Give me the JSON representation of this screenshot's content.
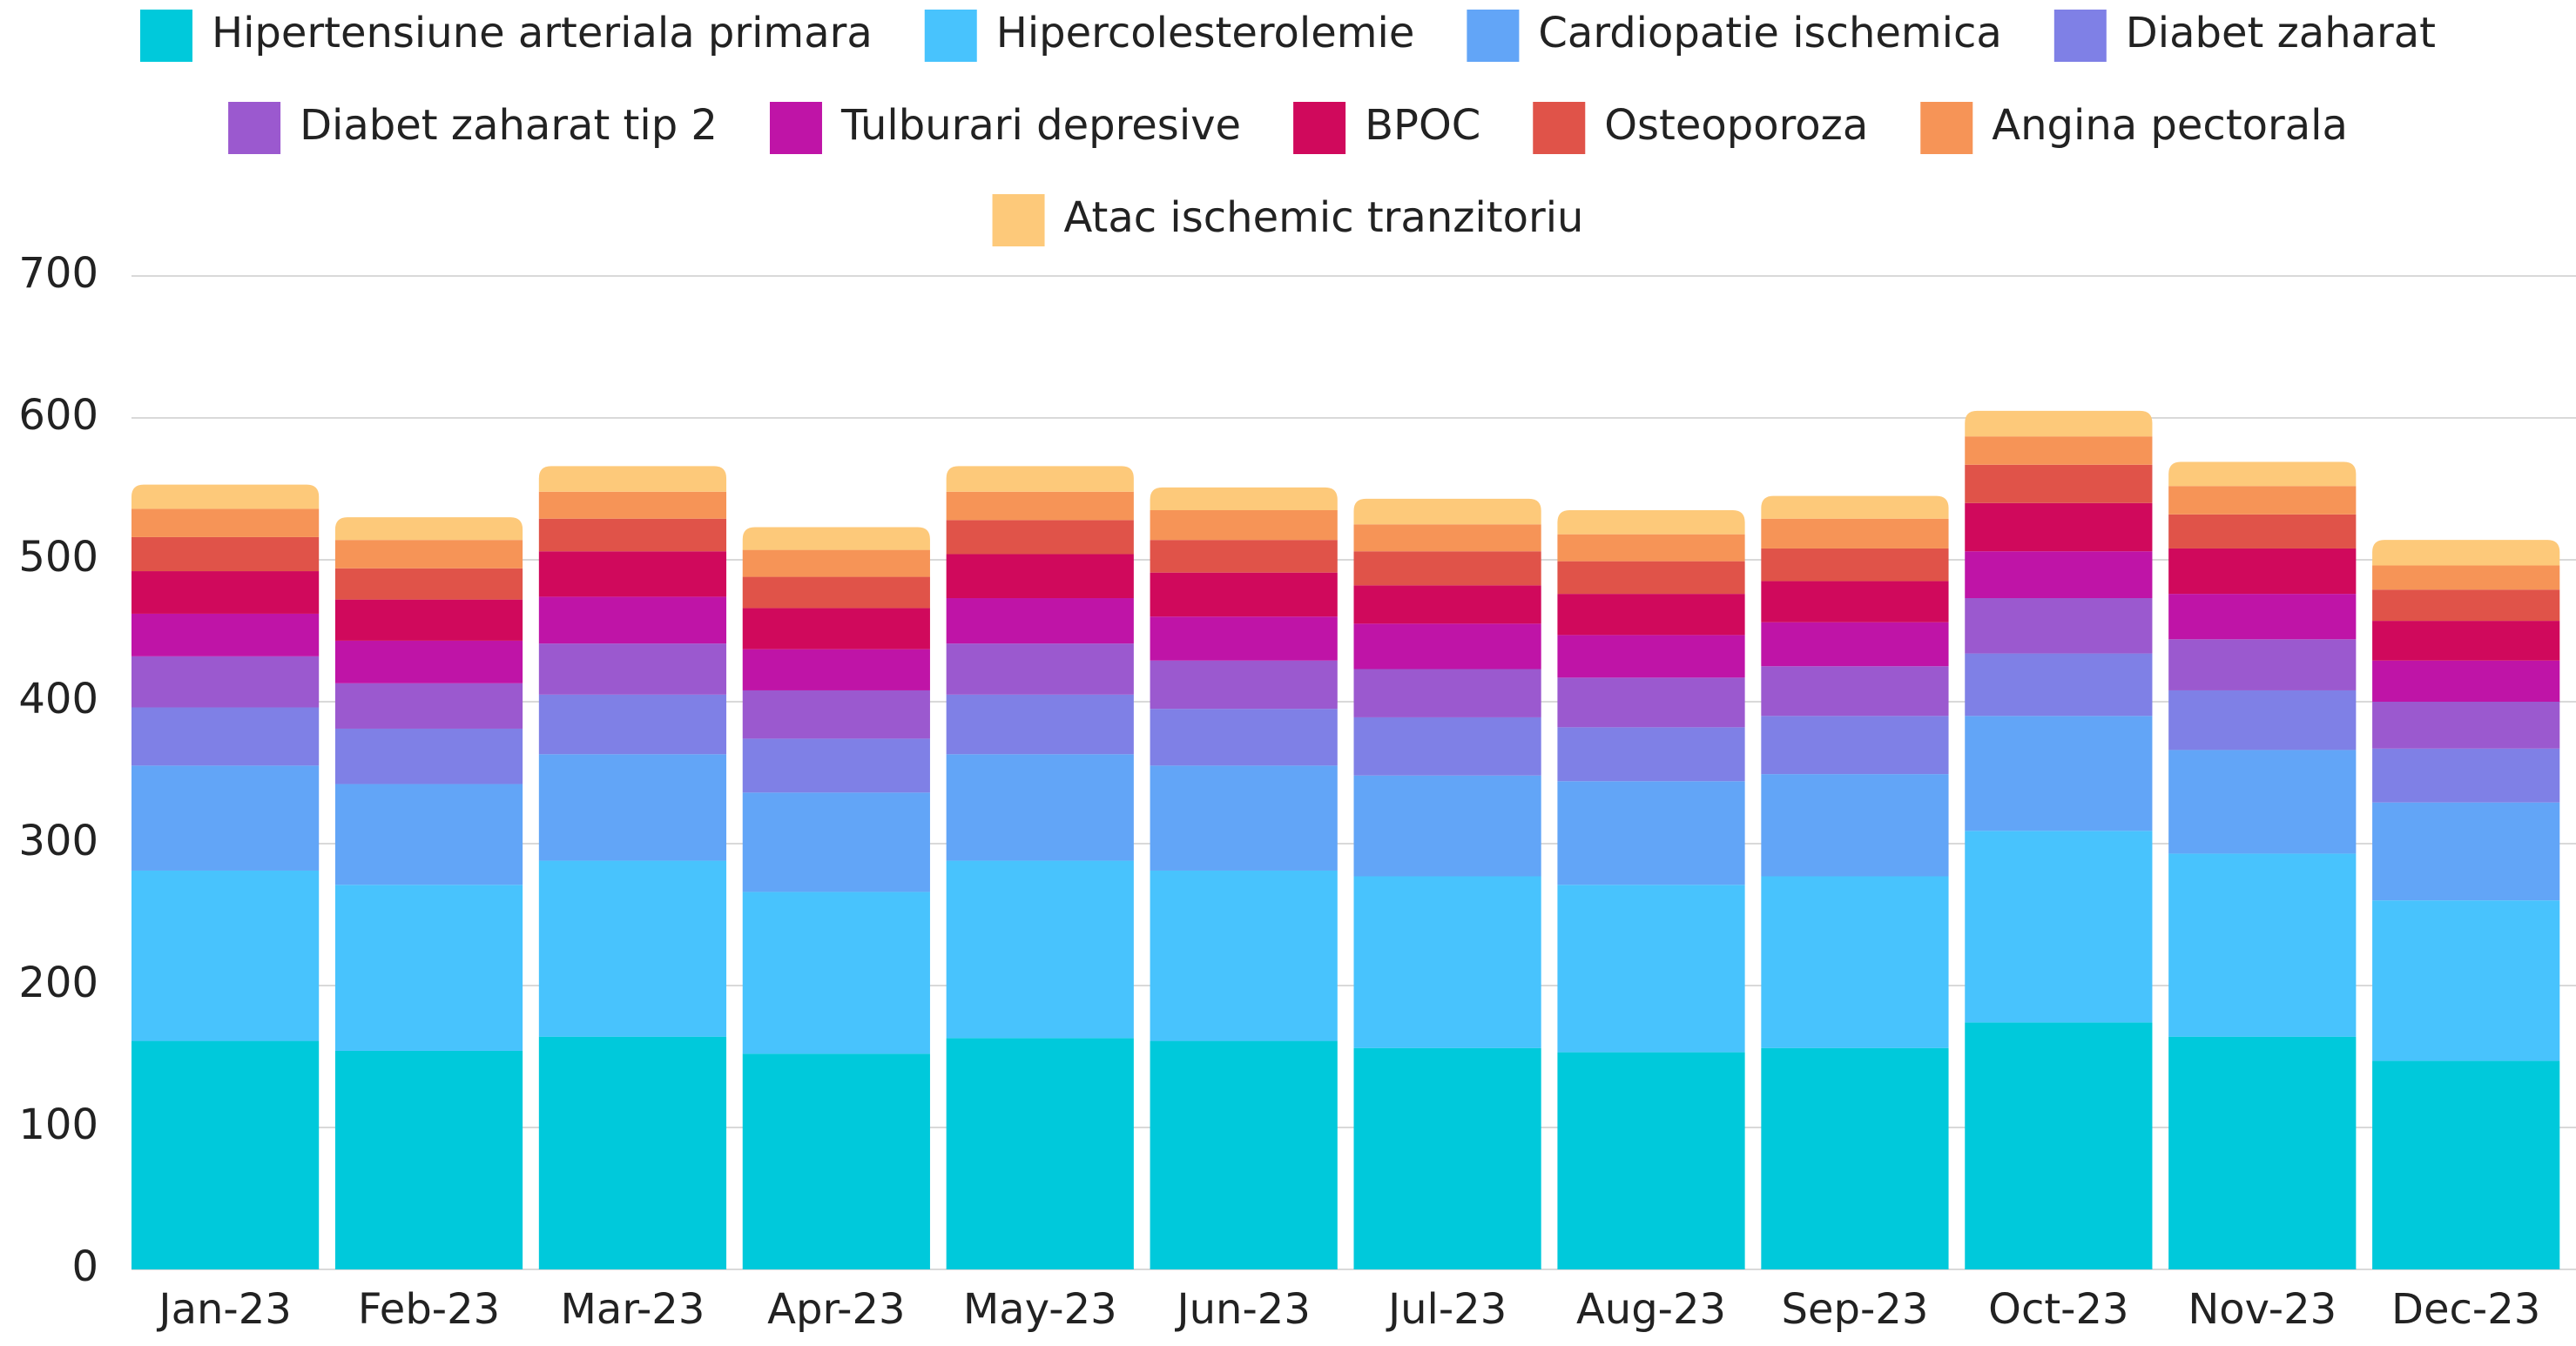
{
  "chart_data": {
    "type": "stacked_bar",
    "categories": [
      "Jan-23",
      "Feb-23",
      "Mar-23",
      "Apr-23",
      "May-23",
      "Jun-23",
      "Jul-23",
      "Aug-23",
      "Sep-23",
      "Oct-23",
      "Nov-23",
      "Dec-23"
    ],
    "series": [
      {
        "name": "Hipertensiune arteriala primara",
        "color": "#00c9db",
        "values": [
          161,
          154,
          164,
          152,
          163,
          161,
          156,
          153,
          156,
          174,
          164,
          147
        ]
      },
      {
        "name": "Hipercolesterolemie",
        "color": "#48c3fd",
        "values": [
          120,
          117,
          124,
          114,
          125,
          120,
          121,
          118,
          121,
          135,
          129,
          113
        ]
      },
      {
        "name": "Cardiopatie ischemica",
        "color": "#62a5f7",
        "values": [
          74,
          71,
          75,
          70,
          75,
          74,
          71,
          73,
          72,
          81,
          73,
          69
        ]
      },
      {
        "name": "Diabet zaharat",
        "color": "#7f80e6",
        "values": [
          41,
          39,
          42,
          38,
          42,
          40,
          41,
          38,
          41,
          44,
          42,
          38
        ]
      },
      {
        "name": "Diabet zaharat tip 2",
        "color": "#9b59cf",
        "values": [
          36,
          32,
          36,
          34,
          36,
          34,
          34,
          35,
          35,
          39,
          36,
          33
        ]
      },
      {
        "name": "Tulburari depresive",
        "color": "#bf14a7",
        "values": [
          30,
          30,
          33,
          29,
          32,
          31,
          32,
          30,
          31,
          33,
          32,
          29
        ]
      },
      {
        "name": "BPOC",
        "color": "#d0095c",
        "values": [
          30,
          29,
          32,
          29,
          31,
          31,
          27,
          29,
          29,
          34,
          32,
          28
        ]
      },
      {
        "name": "Osteoporoza",
        "color": "#e05349",
        "values": [
          24,
          22,
          23,
          22,
          24,
          23,
          24,
          23,
          23,
          27,
          24,
          22
        ]
      },
      {
        "name": "Angina pectorala",
        "color": "#f69457",
        "values": [
          20,
          20,
          19,
          19,
          20,
          21,
          19,
          19,
          21,
          20,
          20,
          17
        ]
      },
      {
        "name": "Atac ischemic tranzitoriu",
        "color": "#fdc97a",
        "values": [
          17,
          16,
          18,
          16,
          18,
          16,
          18,
          17,
          16,
          18,
          17,
          18
        ]
      }
    ],
    "ylim": [
      0,
      700
    ],
    "yticks": [
      0,
      100,
      200,
      300,
      400,
      500,
      600,
      700
    ],
    "grid": true,
    "legend": "top"
  }
}
